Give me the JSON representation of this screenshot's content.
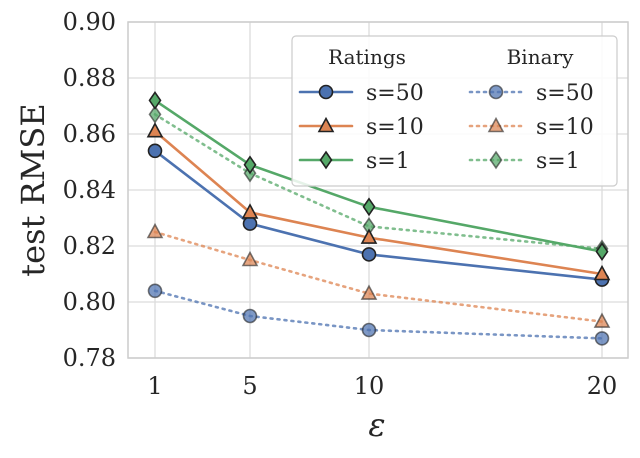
{
  "chart_data": {
    "type": "line",
    "title": "",
    "xlabel": "ε",
    "ylabel": "test RMSE",
    "x": [
      1,
      5,
      10,
      20
    ],
    "x_tick_labels": [
      "1",
      "5",
      "10",
      "20"
    ],
    "ylim": [
      0.78,
      0.9
    ],
    "y_ticks": [
      0.78,
      0.8,
      0.82,
      0.84,
      0.86,
      0.88,
      0.9
    ],
    "y_tick_labels": [
      "0.78",
      "0.80",
      "0.82",
      "0.84",
      "0.86",
      "0.88",
      "0.90"
    ],
    "grid": true,
    "legend": {
      "placement": "top-right",
      "group_titles": [
        "Ratings",
        "Binary"
      ]
    },
    "series": [
      {
        "group": "Ratings",
        "name": "s=50",
        "marker": "circle",
        "style": "solid",
        "color": "#4c72b0",
        "values": [
          0.854,
          0.828,
          0.817,
          0.808
        ]
      },
      {
        "group": "Ratings",
        "name": "s=10",
        "marker": "triangle",
        "style": "solid",
        "color": "#dd8452",
        "values": [
          0.861,
          0.832,
          0.823,
          0.81
        ]
      },
      {
        "group": "Ratings",
        "name": "s=1",
        "marker": "diamond",
        "style": "solid",
        "color": "#55a868",
        "values": [
          0.872,
          0.849,
          0.834,
          0.818
        ]
      },
      {
        "group": "Binary",
        "name": "s=50",
        "marker": "circle",
        "style": "dotted",
        "color": "#4c72b0",
        "values": [
          0.804,
          0.795,
          0.79,
          0.787
        ]
      },
      {
        "group": "Binary",
        "name": "s=10",
        "marker": "triangle",
        "style": "dotted",
        "color": "#dd8452",
        "values": [
          0.825,
          0.815,
          0.803,
          0.793
        ]
      },
      {
        "group": "Binary",
        "name": "s=1",
        "marker": "diamond",
        "style": "dotted",
        "color": "#55a868",
        "values": [
          0.867,
          0.846,
          0.827,
          0.819
        ]
      }
    ]
  }
}
